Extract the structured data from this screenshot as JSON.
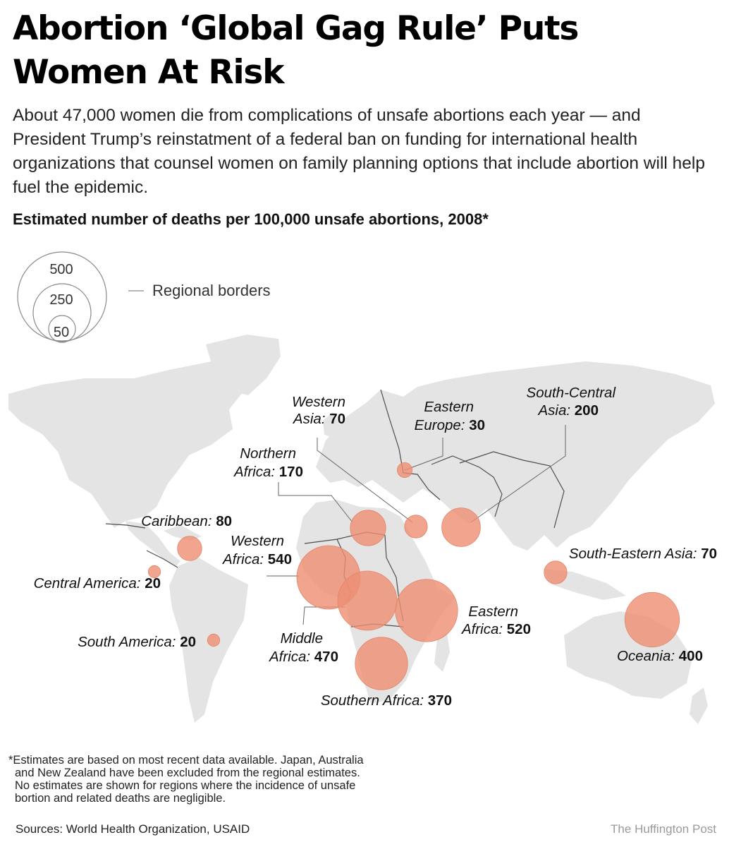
{
  "header": {
    "title_line1": "Abortion ‘Global Gag Rule’ Puts",
    "title_line2": "Women At Risk",
    "lede": "About 47,000 women die from complications of unsafe abortions each year — and President Trump’s reinstatment of a federal ban on funding for international health organizations that counsel women on family planning options that include abortion will help fuel the epidemic.",
    "subtitle": "Estimated number of deaths per 100,000 unsafe abortions, 2008*"
  },
  "legend": {
    "size_labels": [
      "500",
      "250",
      "50"
    ],
    "borders_label": "Regional borders"
  },
  "colors": {
    "bubble": "#ee8f73",
    "bubble_stroke": "#e48466",
    "land": "#e4e4e4",
    "borders": "#4d4d4d",
    "leader": "#666666"
  },
  "chart_data": {
    "type": "bubble-map",
    "title": "Estimated number of deaths per 100,000 unsafe abortions, 2008*",
    "unit": "deaths per 100,000 unsafe abortions",
    "year": 2008,
    "regions": [
      {
        "id": "western-asia",
        "line1": "Western",
        "line2": "Asia:",
        "value": 70
      },
      {
        "id": "eastern-europe",
        "line1": "Eastern",
        "line2": "Europe:",
        "value": 30
      },
      {
        "id": "south-central-asia",
        "line1": "South-Central",
        "line2": "Asia:",
        "value": 200
      },
      {
        "id": "northern-africa",
        "line1": "Northern",
        "line2": "Africa:",
        "value": 170
      },
      {
        "id": "caribbean",
        "line1": "",
        "line2": "Caribbean:",
        "value": 80
      },
      {
        "id": "western-africa",
        "line1": "Western",
        "line2": "Africa:",
        "value": 540
      },
      {
        "id": "central-america",
        "line1": "",
        "line2": "Central America:",
        "value": 20
      },
      {
        "id": "south-eastern-asia",
        "line1": "",
        "line2": "South-Eastern Asia:",
        "value": 70
      },
      {
        "id": "eastern-africa",
        "line1": "Eastern",
        "line2": "Africa:",
        "value": 520
      },
      {
        "id": "middle-africa",
        "line1": "Middle",
        "line2": "Africa:",
        "value": 470
      },
      {
        "id": "south-america",
        "line1": "",
        "line2": "South America:",
        "value": 20
      },
      {
        "id": "oceania",
        "line1": "",
        "line2": "Oceania:",
        "value": 400
      },
      {
        "id": "southern-africa",
        "line1": "",
        "line2": "Southern Africa:",
        "value": 370
      }
    ]
  },
  "footer": {
    "footnote_line1": "*Estimates are based on most recent data available. Japan, Australia",
    "footnote_line2": "and New Zealand have been excluded from the regional estimates.",
    "footnote_line3": "No estimates are shown for regions where the incidence of unsafe",
    "footnote_line4": "bortion and related deaths are negligible.",
    "sources": "Sources: World Health Organization, USAID",
    "credit": "The Huffington Post"
  }
}
